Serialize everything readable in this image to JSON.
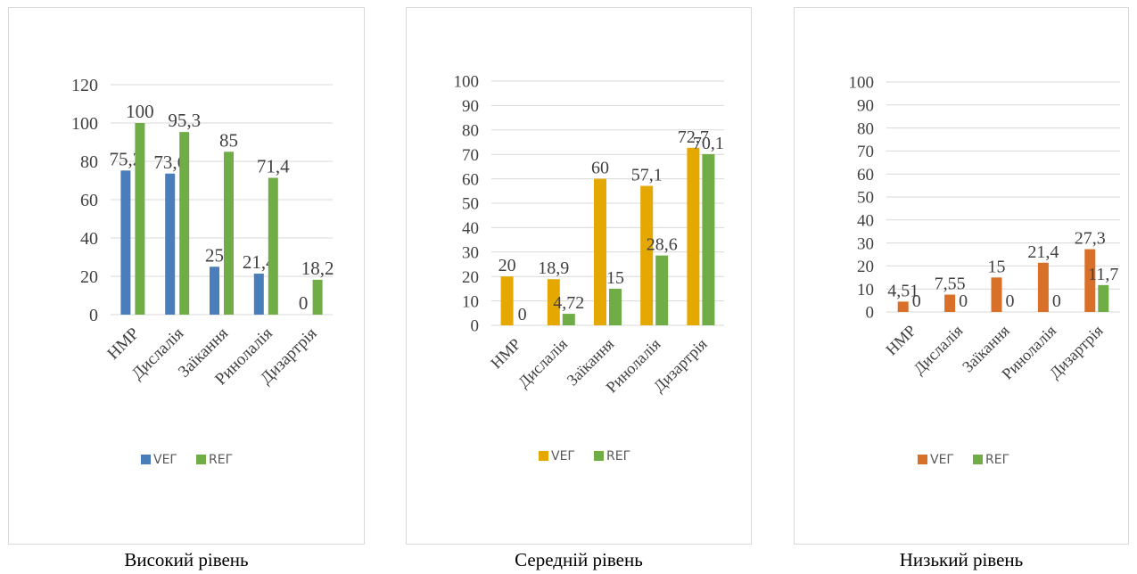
{
  "chart_data": [
    {
      "type": "bar",
      "caption": "Високий рівень",
      "categories": [
        "НМР",
        "Дислалія",
        "Заїкання",
        "Ринолалія",
        "Дизартрія"
      ],
      "series": [
        {
          "name": "VEГ",
          "values": [
            75.2,
            73.6,
            25,
            21.4,
            0
          ],
          "labels": [
            "75,2",
            "73,6",
            "25",
            "21,4",
            "0"
          ],
          "color": "#4a7ebb"
        },
        {
          "name": "REГ",
          "values": [
            100,
            95.3,
            85,
            71.4,
            18.2
          ],
          "labels": [
            "100",
            "95,3",
            "85",
            "71,4",
            "18,2"
          ],
          "color": "#70ad47"
        }
      ],
      "yticks": [
        "0",
        "20",
        "40",
        "60",
        "80",
        "100",
        "120"
      ],
      "ylim": [
        0,
        120
      ],
      "grid": true,
      "legend": "bottom"
    },
    {
      "type": "bar",
      "caption": "Середній рівень",
      "categories": [
        "НМР",
        "Дислалія",
        "Заїкання",
        "Ринолалія",
        "Дизартрія"
      ],
      "series": [
        {
          "name": "VEГ",
          "values": [
            20,
            18.9,
            60,
            57.1,
            72.7
          ],
          "labels": [
            "20",
            "18,9",
            "60",
            "57,1",
            "72,7"
          ],
          "color": "#e5a800"
        },
        {
          "name": "REГ",
          "values": [
            0,
            4.72,
            15,
            28.6,
            70.1
          ],
          "labels": [
            "0",
            "4,72",
            "15",
            "28,6",
            "70,1"
          ],
          "color": "#70ad47"
        }
      ],
      "yticks": [
        "0",
        "10",
        "20",
        "30",
        "40",
        "50",
        "60",
        "70",
        "80",
        "90",
        "100"
      ],
      "ylim": [
        0,
        100
      ],
      "grid": true,
      "legend": "bottom"
    },
    {
      "type": "bar",
      "caption": "Низький рівень",
      "categories": [
        "НМР",
        "Дислалія",
        "Заїкання",
        "Ринолалія",
        "Дизартрія"
      ],
      "series": [
        {
          "name": "VEГ",
          "values": [
            4.51,
            7.55,
            15,
            21.4,
            27.3
          ],
          "labels": [
            "4,51",
            "7,55",
            "15",
            "21,4",
            "27,3"
          ],
          "color": "#d9702a"
        },
        {
          "name": "REГ",
          "values": [
            0,
            0,
            0,
            0,
            11.7
          ],
          "labels": [
            "0",
            "0",
            "0",
            "0",
            "11,7"
          ],
          "color": "#70ad47"
        }
      ],
      "yticks": [
        "0",
        "10",
        "20",
        "30",
        "40",
        "50",
        "60",
        "70",
        "80",
        "90",
        "100"
      ],
      "ylim": [
        0,
        100
      ],
      "grid": true,
      "legend": "bottom"
    }
  ]
}
